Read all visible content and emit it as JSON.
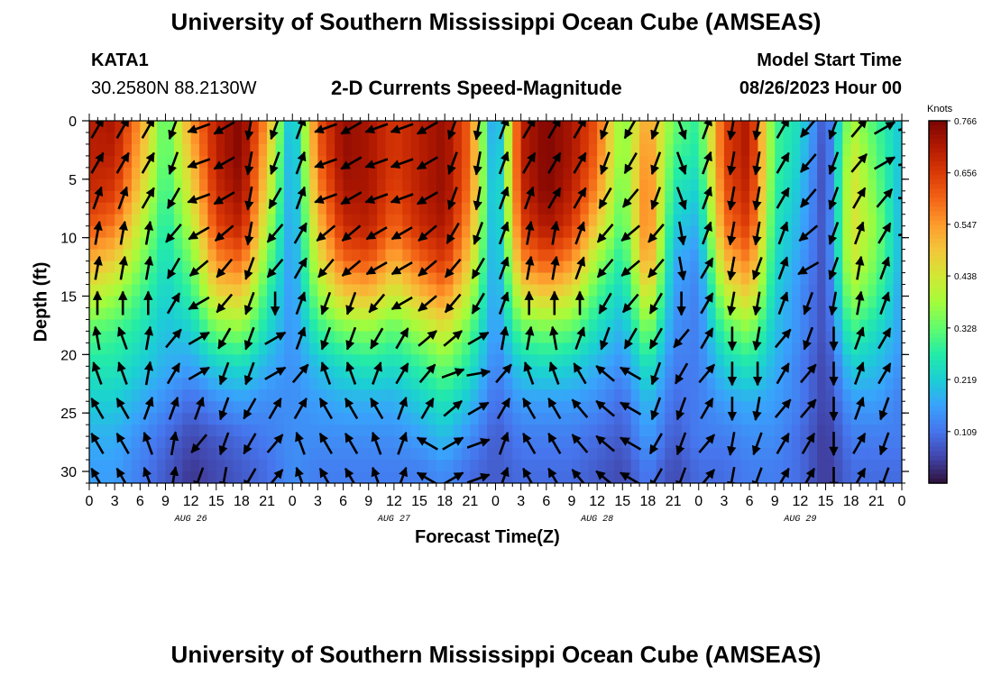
{
  "page": {
    "title": "University of Southern Mississippi Ocean Cube (AMSEAS)",
    "footer_title": "University of Southern Mississippi Ocean Cube (AMSEAS)"
  },
  "station": {
    "id": "KATA1",
    "coords": "30.2580N  88.2130W"
  },
  "model": {
    "label": "Model Start Time",
    "start": "08/26/2023 Hour 00"
  },
  "chart_data": {
    "type": "heatmap",
    "title": "2-D Currents Speed-Magnitude",
    "xlabel": "Forecast Time(Z)",
    "ylabel": "Depth (ft)",
    "x_hours_range": [
      0,
      96
    ],
    "x_tick_step_hours": 3,
    "x_tick_labels": [
      "0",
      "3",
      "6",
      "9",
      "12",
      "15",
      "18",
      "21",
      "0",
      "3",
      "6",
      "9",
      "12",
      "15",
      "18",
      "21",
      "0",
      "3",
      "6",
      "9",
      "12",
      "15",
      "18",
      "21",
      "0",
      "3",
      "6",
      "9",
      "12",
      "15",
      "18",
      "21",
      "0"
    ],
    "date_labels": [
      {
        "label": "AUG 26",
        "hour": 12
      },
      {
        "label": "AUG 27",
        "hour": 36
      },
      {
        "label": "AUG 28",
        "hour": 60
      },
      {
        "label": "AUG 29",
        "hour": 84
      }
    ],
    "y_range_ft": [
      0,
      31
    ],
    "y_ticks": [
      "0",
      "5",
      "10",
      "15",
      "20",
      "25",
      "30"
    ],
    "colorbar": {
      "unit": "Knots",
      "min": 0.0,
      "max": 0.766,
      "tick_labels": [
        "0.766",
        "0.656",
        "0.547",
        "0.438",
        "0.328",
        "0.219",
        "0.109"
      ],
      "tick_values": [
        0.766,
        0.656,
        0.547,
        0.438,
        0.328,
        0.219,
        0.109
      ],
      "colors": [
        "#30123b",
        "#4145ab",
        "#4675ed",
        "#39a2fc",
        "#1bcfd4",
        "#24eca6",
        "#61fc6c",
        "#a4fc3b",
        "#d1e834",
        "#f3c63a",
        "#fe9b2d",
        "#f36315",
        "#d93806",
        "#b11901",
        "#7a0403"
      ]
    },
    "time_columns_hours": [
      0,
      3,
      6,
      9,
      12,
      15,
      18,
      21,
      24,
      27,
      30,
      33,
      36,
      39,
      42,
      45,
      48,
      51,
      54,
      57,
      60,
      63,
      66,
      69,
      72,
      75,
      78,
      81,
      84,
      87,
      90,
      93,
      96
    ],
    "depth_rows_ft": [
      0,
      3,
      6,
      9,
      12,
      15,
      18,
      21,
      24,
      27,
      30
    ],
    "speed_knots": [
      [
        0.7,
        0.72,
        0.55,
        0.3,
        0.55,
        0.7,
        0.76,
        0.55,
        0.15,
        0.62,
        0.74,
        0.72,
        0.66,
        0.7,
        0.74,
        0.6,
        0.1,
        0.7,
        0.76,
        0.72,
        0.62,
        0.34,
        0.55,
        0.34,
        0.28,
        0.64,
        0.72,
        0.3,
        0.24,
        0.06,
        0.4,
        0.3,
        0.2
      ],
      [
        0.7,
        0.7,
        0.52,
        0.3,
        0.5,
        0.7,
        0.76,
        0.5,
        0.14,
        0.6,
        0.74,
        0.72,
        0.66,
        0.7,
        0.74,
        0.6,
        0.12,
        0.7,
        0.76,
        0.72,
        0.6,
        0.34,
        0.58,
        0.3,
        0.26,
        0.64,
        0.72,
        0.3,
        0.22,
        0.05,
        0.44,
        0.32,
        0.2
      ],
      [
        0.68,
        0.66,
        0.48,
        0.28,
        0.46,
        0.68,
        0.74,
        0.46,
        0.14,
        0.56,
        0.72,
        0.72,
        0.64,
        0.7,
        0.74,
        0.58,
        0.14,
        0.68,
        0.76,
        0.7,
        0.56,
        0.32,
        0.6,
        0.26,
        0.22,
        0.62,
        0.7,
        0.28,
        0.2,
        0.05,
        0.46,
        0.34,
        0.18
      ],
      [
        0.62,
        0.58,
        0.42,
        0.26,
        0.4,
        0.64,
        0.7,
        0.4,
        0.14,
        0.5,
        0.68,
        0.7,
        0.6,
        0.68,
        0.72,
        0.54,
        0.14,
        0.64,
        0.72,
        0.66,
        0.48,
        0.3,
        0.6,
        0.22,
        0.18,
        0.58,
        0.66,
        0.26,
        0.18,
        0.06,
        0.46,
        0.36,
        0.18
      ],
      [
        0.52,
        0.48,
        0.36,
        0.24,
        0.34,
        0.56,
        0.6,
        0.34,
        0.14,
        0.44,
        0.6,
        0.62,
        0.52,
        0.6,
        0.66,
        0.48,
        0.14,
        0.56,
        0.62,
        0.56,
        0.38,
        0.26,
        0.56,
        0.18,
        0.14,
        0.5,
        0.58,
        0.24,
        0.16,
        0.06,
        0.44,
        0.34,
        0.18
      ],
      [
        0.42,
        0.38,
        0.3,
        0.22,
        0.28,
        0.46,
        0.48,
        0.28,
        0.14,
        0.36,
        0.48,
        0.5,
        0.42,
        0.5,
        0.56,
        0.4,
        0.14,
        0.44,
        0.48,
        0.44,
        0.3,
        0.22,
        0.46,
        0.16,
        0.12,
        0.4,
        0.48,
        0.22,
        0.14,
        0.06,
        0.38,
        0.3,
        0.16
      ],
      [
        0.32,
        0.3,
        0.26,
        0.2,
        0.22,
        0.34,
        0.36,
        0.24,
        0.14,
        0.28,
        0.34,
        0.36,
        0.32,
        0.38,
        0.44,
        0.32,
        0.14,
        0.32,
        0.34,
        0.32,
        0.24,
        0.18,
        0.36,
        0.14,
        0.12,
        0.3,
        0.36,
        0.2,
        0.14,
        0.06,
        0.3,
        0.24,
        0.16
      ],
      [
        0.26,
        0.26,
        0.22,
        0.18,
        0.16,
        0.22,
        0.24,
        0.18,
        0.14,
        0.2,
        0.24,
        0.26,
        0.24,
        0.28,
        0.34,
        0.26,
        0.12,
        0.22,
        0.24,
        0.22,
        0.18,
        0.14,
        0.26,
        0.12,
        0.12,
        0.22,
        0.26,
        0.18,
        0.12,
        0.05,
        0.22,
        0.2,
        0.14
      ],
      [
        0.22,
        0.22,
        0.18,
        0.14,
        0.1,
        0.14,
        0.16,
        0.14,
        0.14,
        0.16,
        0.18,
        0.18,
        0.18,
        0.22,
        0.26,
        0.2,
        0.1,
        0.16,
        0.16,
        0.16,
        0.14,
        0.1,
        0.2,
        0.1,
        0.12,
        0.16,
        0.18,
        0.16,
        0.12,
        0.05,
        0.16,
        0.16,
        0.12
      ],
      [
        0.18,
        0.18,
        0.14,
        0.1,
        0.06,
        0.08,
        0.1,
        0.12,
        0.14,
        0.14,
        0.14,
        0.14,
        0.14,
        0.16,
        0.2,
        0.14,
        0.08,
        0.12,
        0.12,
        0.12,
        0.1,
        0.08,
        0.16,
        0.08,
        0.12,
        0.12,
        0.14,
        0.14,
        0.1,
        0.04,
        0.12,
        0.12,
        0.12
      ],
      [
        0.16,
        0.16,
        0.12,
        0.08,
        0.04,
        0.06,
        0.08,
        0.1,
        0.14,
        0.12,
        0.12,
        0.12,
        0.12,
        0.12,
        0.14,
        0.1,
        0.08,
        0.1,
        0.1,
        0.1,
        0.08,
        0.06,
        0.12,
        0.06,
        0.1,
        0.1,
        0.12,
        0.12,
        0.1,
        0.04,
        0.1,
        0.1,
        0.1
      ]
    ],
    "arrow_direction_deg": [
      [
        30,
        30,
        30,
        200,
        250,
        240,
        190,
        200,
        20,
        250,
        240,
        250,
        250,
        240,
        200,
        190,
        20,
        30,
        30,
        30,
        200,
        210,
        200,
        160,
        20,
        190,
        190,
        30,
        220,
        200,
        40,
        60,
        80
      ],
      [
        30,
        30,
        30,
        200,
        250,
        240,
        190,
        200,
        20,
        250,
        240,
        250,
        250,
        240,
        200,
        190,
        20,
        30,
        30,
        30,
        200,
        210,
        200,
        160,
        20,
        190,
        190,
        30,
        220,
        200,
        40,
        60,
        80
      ],
      [
        20,
        20,
        30,
        210,
        250,
        240,
        190,
        210,
        20,
        250,
        240,
        250,
        250,
        240,
        200,
        190,
        20,
        20,
        30,
        30,
        210,
        220,
        200,
        160,
        20,
        190,
        190,
        30,
        220,
        200,
        30,
        40,
        90
      ],
      [
        10,
        10,
        10,
        220,
        240,
        230,
        190,
        220,
        30,
        230,
        230,
        240,
        240,
        230,
        210,
        200,
        20,
        10,
        10,
        20,
        220,
        230,
        220,
        170,
        20,
        190,
        190,
        20,
        230,
        200,
        20,
        30,
        80
      ],
      [
        10,
        10,
        10,
        210,
        230,
        220,
        200,
        220,
        30,
        220,
        230,
        240,
        240,
        230,
        220,
        210,
        20,
        10,
        10,
        20,
        220,
        230,
        220,
        170,
        30,
        190,
        200,
        20,
        240,
        200,
        10,
        20,
        30
      ],
      [
        0,
        0,
        0,
        30,
        240,
        220,
        200,
        180,
        20,
        200,
        200,
        220,
        240,
        230,
        220,
        210,
        20,
        0,
        0,
        0,
        210,
        220,
        210,
        180,
        30,
        190,
        190,
        20,
        200,
        190,
        10,
        20,
        30
      ],
      [
        350,
        340,
        10,
        40,
        60,
        210,
        200,
        60,
        20,
        200,
        200,
        210,
        30,
        50,
        50,
        60,
        10,
        10,
        350,
        20,
        200,
        210,
        210,
        220,
        30,
        180,
        190,
        40,
        200,
        180,
        20,
        30,
        40
      ],
      [
        340,
        340,
        10,
        30,
        60,
        200,
        200,
        60,
        40,
        340,
        340,
        20,
        30,
        40,
        70,
        80,
        40,
        340,
        340,
        330,
        310,
        300,
        200,
        210,
        40,
        180,
        180,
        30,
        40,
        180,
        20,
        30,
        150
      ],
      [
        330,
        330,
        20,
        20,
        20,
        200,
        210,
        30,
        30,
        330,
        330,
        330,
        20,
        30,
        50,
        60,
        30,
        330,
        330,
        320,
        310,
        300,
        200,
        200,
        30,
        180,
        190,
        40,
        40,
        180,
        20,
        200,
        150
      ],
      [
        330,
        330,
        340,
        10,
        220,
        200,
        210,
        40,
        340,
        330,
        330,
        340,
        20,
        300,
        60,
        70,
        20,
        330,
        330,
        320,
        310,
        300,
        210,
        200,
        40,
        190,
        200,
        30,
        30,
        180,
        30,
        200,
        150
      ],
      [
        330,
        330,
        340,
        10,
        200,
        190,
        210,
        40,
        340,
        330,
        330,
        340,
        20,
        300,
        60,
        70,
        20,
        330,
        330,
        320,
        310,
        300,
        210,
        200,
        40,
        190,
        200,
        30,
        30,
        180,
        30,
        200,
        150
      ]
    ]
  }
}
